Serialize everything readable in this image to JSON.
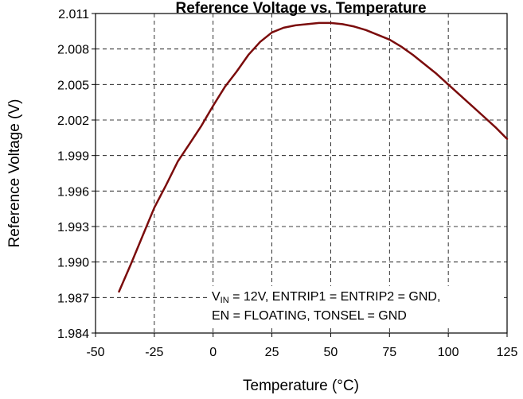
{
  "chart_data": {
    "type": "line",
    "title": "Reference Voltage vs. Temperature",
    "xlabel": "Temperature (°C)",
    "ylabel": "Reference Voltage (V)",
    "xlim": [
      -50,
      125
    ],
    "ylim": [
      1.984,
      2.011
    ],
    "x_ticks": [
      -50,
      -25,
      0,
      25,
      50,
      75,
      100,
      125
    ],
    "y_ticks": [
      1.984,
      1.987,
      1.99,
      1.993,
      1.996,
      1.999,
      2.002,
      2.005,
      2.008,
      2.011
    ],
    "x_tick_labels": [
      "-50",
      "-25",
      "0",
      "25",
      "50",
      "75",
      "100",
      "125"
    ],
    "y_tick_labels": [
      "1.984",
      "1.987",
      "1.990",
      "1.993",
      "1.996",
      "1.999",
      "2.002",
      "2.005",
      "2.008",
      "2.011"
    ],
    "grid": "dashed",
    "line_color": "#7b0c0c",
    "series": [
      {
        "x": [
          -40,
          -35,
          -30,
          -25,
          -20,
          -15,
          -10,
          -5,
          0,
          5,
          10,
          15,
          20,
          25,
          30,
          35,
          40,
          45,
          50,
          55,
          60,
          65,
          70,
          75,
          80,
          85,
          90,
          95,
          100,
          105,
          110,
          115,
          120,
          125
        ],
        "y": [
          1.9875,
          1.9898,
          1.9922,
          1.9946,
          1.9965,
          1.9985,
          2.0,
          2.0015,
          2.0032,
          2.0048,
          2.0061,
          2.0075,
          2.0086,
          2.0094,
          2.0098,
          2.01,
          2.0101,
          2.0102,
          2.0102,
          2.0101,
          2.0099,
          2.0096,
          2.0092,
          2.0088,
          2.0082,
          2.0075,
          2.0067,
          2.0059,
          2.005,
          2.0041,
          2.0032,
          2.0023,
          2.0014,
          2.0004
        ]
      }
    ],
    "annotation": {
      "line1_pre": "V",
      "line1_sub": "IN",
      "line1_post": " = 12V, ENTRIP1 = ENTRIP2 = GND,",
      "line2": "EN = FLOATING,  TONSEL = GND"
    }
  }
}
